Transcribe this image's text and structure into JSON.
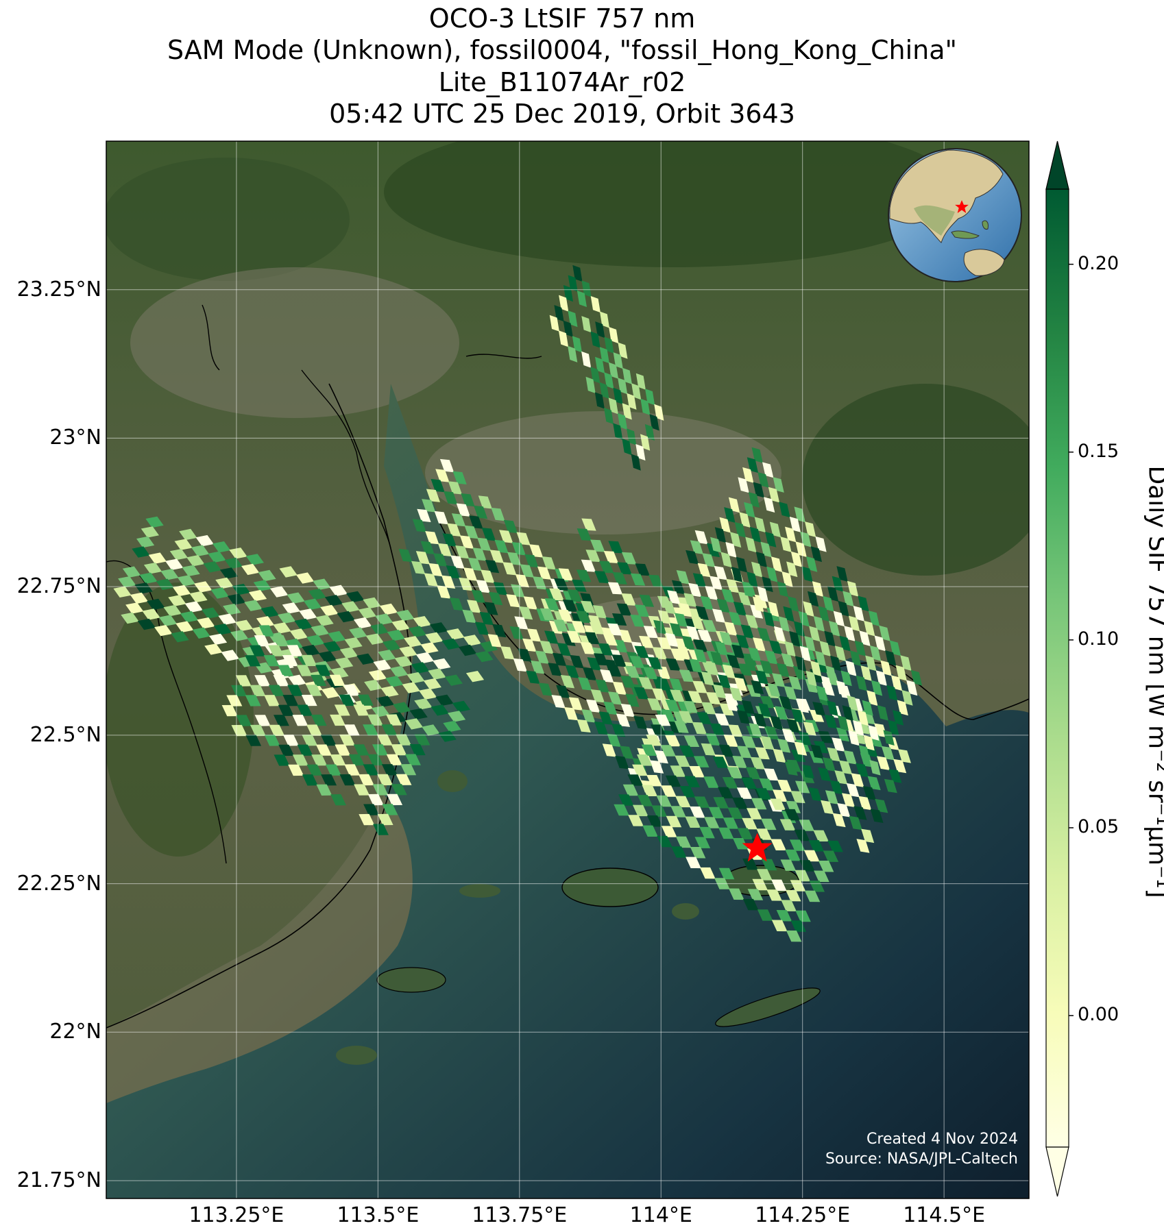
{
  "title": {
    "line1": "OCO-3 LtSIF 757 nm",
    "line2": "SAM Mode (Unknown), fossil0004, \"fossil_Hong_Kong_China\"",
    "line3": "Lite_B11074Ar_r02",
    "line4": "05:42 UTC 25 Dec 2019, Orbit 3643"
  },
  "map": {
    "lon_range": [
      113.02,
      114.65
    ],
    "lat_range": [
      21.72,
      23.5
    ],
    "lat_ticks": [
      {
        "value": 23.25,
        "label": "23.25°N"
      },
      {
        "value": 23.0,
        "label": "23°N"
      },
      {
        "value": 22.75,
        "label": "22.75°N"
      },
      {
        "value": 22.5,
        "label": "22.5°N"
      },
      {
        "value": 22.25,
        "label": "22.25°N"
      },
      {
        "value": 22.0,
        "label": "22°N"
      },
      {
        "value": 21.75,
        "label": "21.75°N"
      }
    ],
    "lon_ticks": [
      {
        "value": 113.25,
        "label": "113.25°E"
      },
      {
        "value": 113.5,
        "label": "113.5°E"
      },
      {
        "value": 113.75,
        "label": "113.75°E"
      },
      {
        "value": 114.0,
        "label": "114°E"
      },
      {
        "value": 114.25,
        "label": "114.25°E"
      },
      {
        "value": 114.5,
        "label": "114.5°E"
      }
    ],
    "grid": true,
    "target": {
      "name": "fossil_Hong_Kong_China",
      "lon": 114.17,
      "lat": 22.31,
      "marker": "red-star",
      "color": "#ff0000"
    },
    "inset_globe": {
      "position": "top-right",
      "marker": "red-star"
    },
    "sounding_swaths": [
      {
        "lon0": 113.05,
        "lat0": 22.78,
        "lon1": 113.67,
        "lat1": 22.56
      },
      {
        "lon0": 113.25,
        "lat0": 22.6,
        "lon1": 113.55,
        "lat1": 22.4
      },
      {
        "lon0": 113.57,
        "lat0": 22.88,
        "lon1": 114.02,
        "lat1": 22.47
      },
      {
        "lon0": 113.82,
        "lat0": 22.78,
        "lon1": 114.27,
        "lat1": 22.42
      },
      {
        "lon0": 114.02,
        "lat0": 22.76,
        "lon1": 114.4,
        "lat1": 22.37
      },
      {
        "lon0": 114.12,
        "lat0": 22.9,
        "lon1": 114.42,
        "lat1": 22.5
      },
      {
        "lon0": 113.95,
        "lat0": 22.45,
        "lon1": 114.28,
        "lat1": 22.22
      },
      {
        "lon0": 113.82,
        "lat0": 23.24,
        "lon1": 113.98,
        "lat1": 22.98
      }
    ]
  },
  "colorbar": {
    "colormap": "YlGn",
    "label": "Daily SIF 757 nm [W m⁻² sr⁻¹μm⁻¹]",
    "range": [
      -0.035,
      0.22
    ],
    "ticks": [
      {
        "value": 0.2,
        "label": "0.20"
      },
      {
        "value": 0.15,
        "label": "0.15"
      },
      {
        "value": 0.1,
        "label": "0.10"
      },
      {
        "value": 0.05,
        "label": "0.05"
      },
      {
        "value": 0.0,
        "label": "0.00"
      }
    ],
    "extend": "both"
  },
  "credit": {
    "created": "Created 4 Nov 2024",
    "source": "Source: NASA/JPL-Caltech"
  }
}
